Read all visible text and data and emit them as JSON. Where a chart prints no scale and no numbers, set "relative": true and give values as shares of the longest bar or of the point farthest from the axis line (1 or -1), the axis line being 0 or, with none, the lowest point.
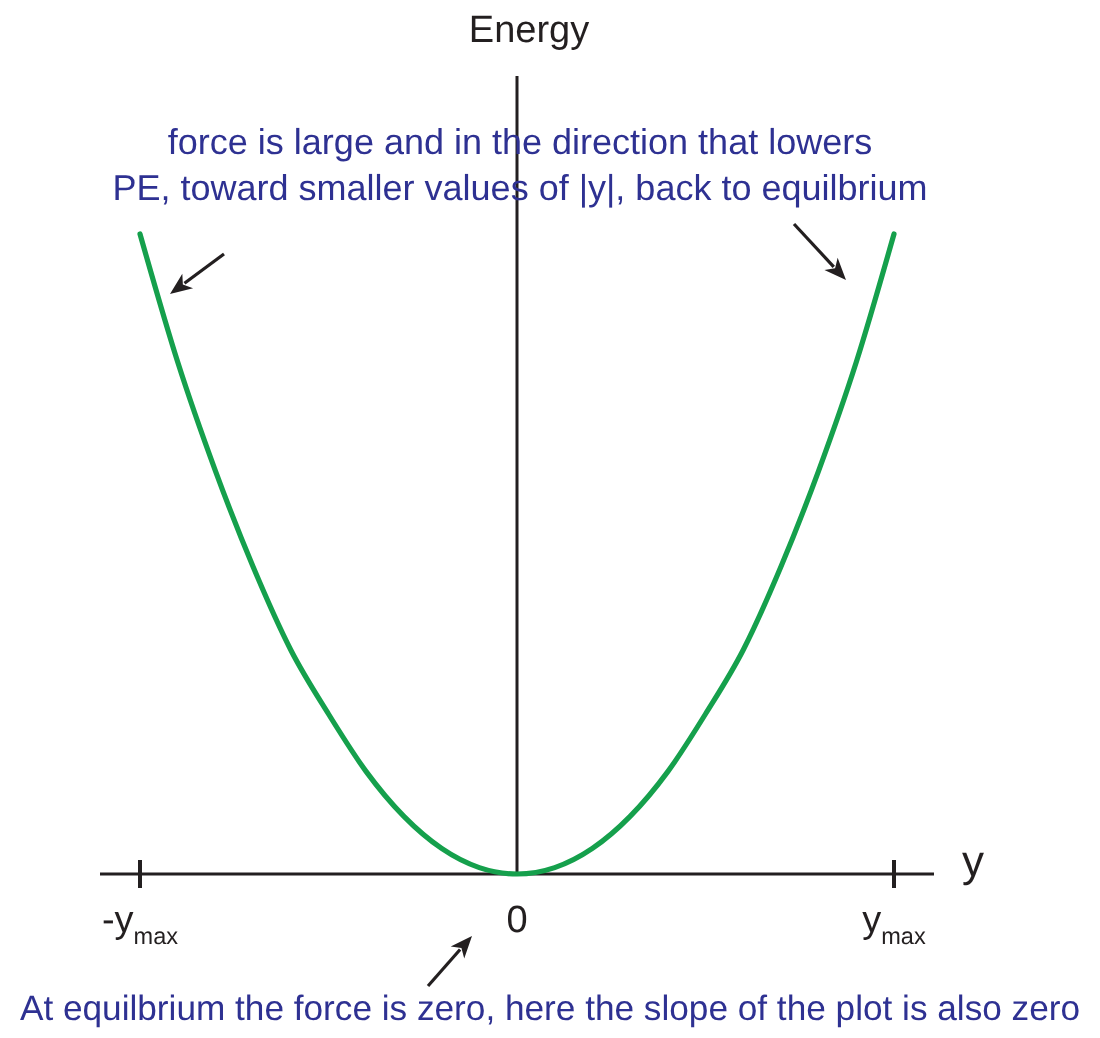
{
  "chart_data": {
    "type": "line",
    "relative": true,
    "ylabel": "Energy",
    "xlabel": "y",
    "categories": [
      "-y$_{max}$",
      null,
      null,
      null,
      null,
      null,
      null,
      null,
      null,
      null,
      "0",
      null,
      null,
      null,
      null,
      null,
      null,
      null,
      null,
      null,
      "y$_{max}$"
    ],
    "values": [
      1.0,
      0.8,
      0.63,
      0.48,
      0.35,
      0.25,
      0.16,
      0.09,
      0.04,
      0.01,
      0,
      0.01,
      0.04,
      0.09,
      0.16,
      0.25,
      0.35,
      0.48,
      0.63,
      0.8,
      1.0
    ],
    "color": "#15a04c",
    "annotations": [
      "force is large and in the direction that lowers\nPE, toward smaller values of |y|, back to equilbrium",
      "At equilbrium the force is zero, here the slope of the plot is also zero"
    ]
  }
}
